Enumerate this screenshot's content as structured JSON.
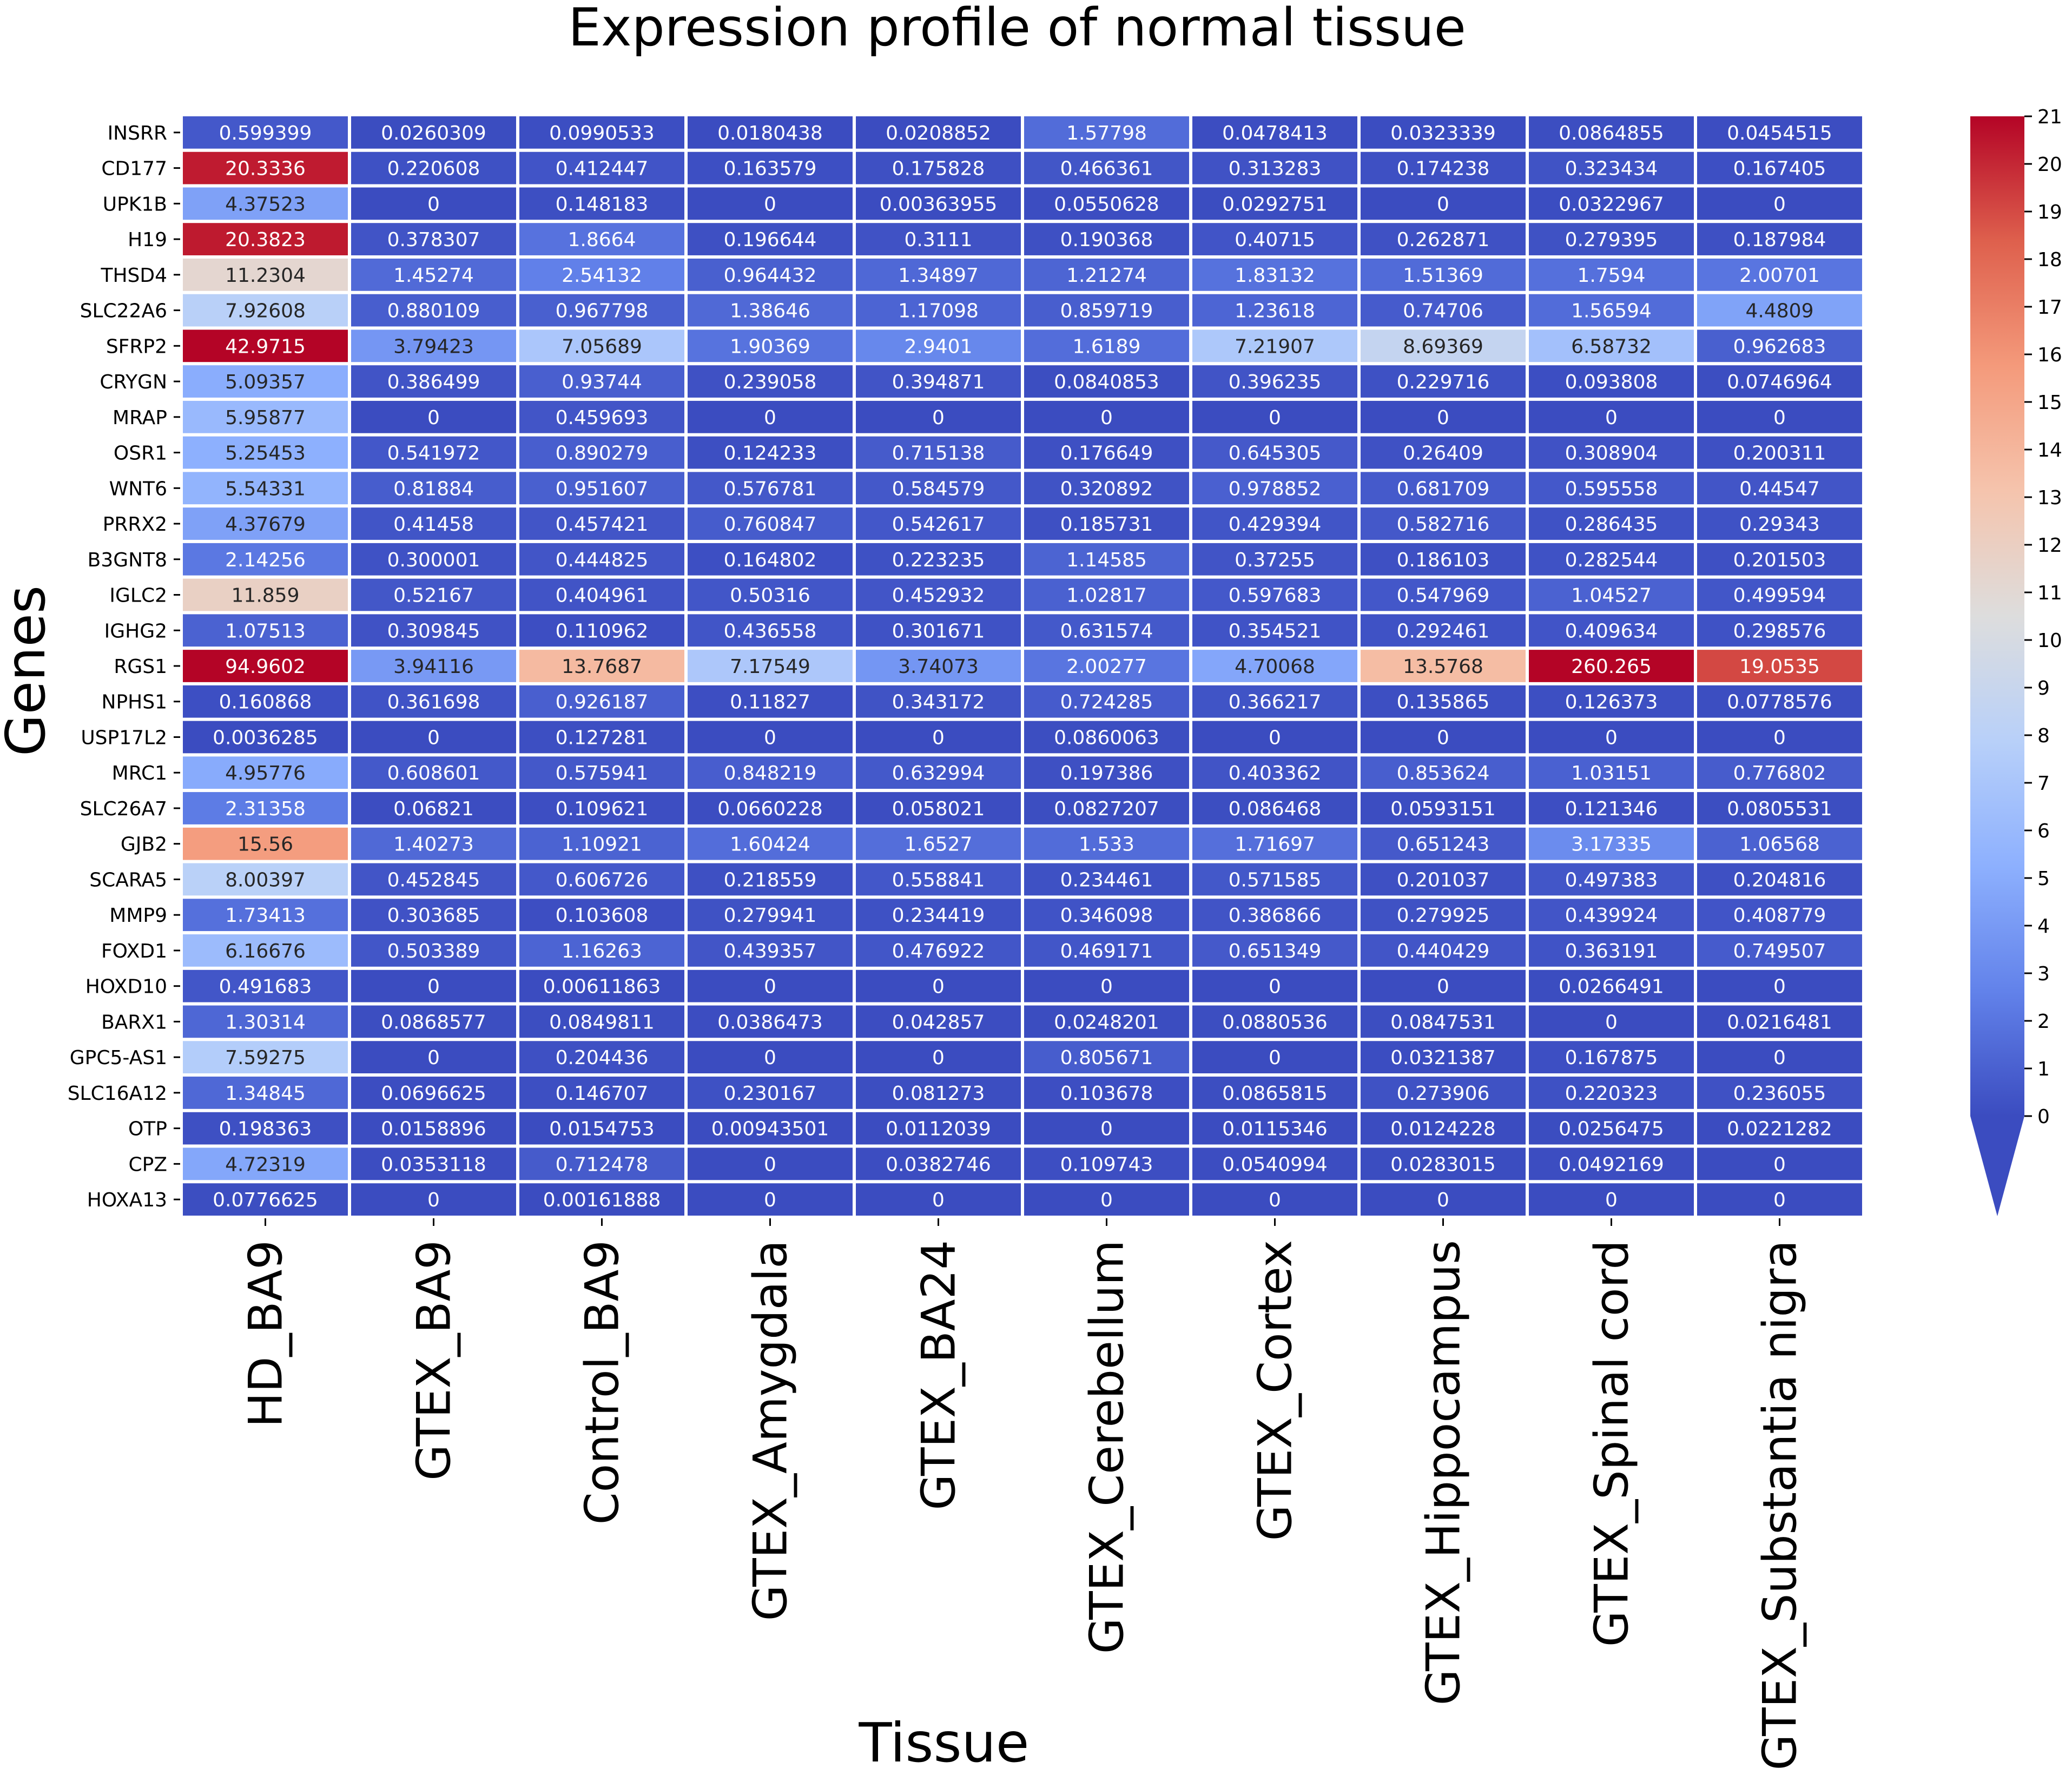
{
  "chart_data": {
    "type": "heatmap",
    "title": "Expression profile of normal tissue",
    "xlabel": "Tissue",
    "ylabel": "Genes",
    "colormap": "coolwarm",
    "vmin": 0,
    "vmax": 21,
    "colorbar_ticks": [
      "0",
      "1",
      "2",
      "3",
      "4",
      "5",
      "6",
      "7",
      "8",
      "9",
      "10",
      "11",
      "12",
      "13",
      "14",
      "15",
      "16",
      "17",
      "18",
      "19",
      "20",
      "21"
    ],
    "colorbar_extend": "min",
    "columns": [
      "HD_BA9",
      "GTEX_BA9",
      "Control_BA9",
      "GTEX_Amygdala",
      "GTEX_BA24",
      "GTEX_Cerebellum",
      "GTEX_Cortex",
      "GTEX_Hippocampus",
      "GTEX_Spinal cord",
      "GTEX_Substantia nigra"
    ],
    "rows": [
      "INSRR",
      "CD177",
      "UPK1B",
      "H19",
      "THSD4",
      "SLC22A6",
      "SFRP2",
      "CRYGN",
      "MRAP",
      "OSR1",
      "WNT6",
      "PRRX2",
      "B3GNT8",
      "IGLC2",
      "IGHG2",
      "RGS1",
      "NPHS1",
      "USP17L2",
      "MRC1",
      "SLC26A7",
      "GJB2",
      "SCARA5",
      "MMP9",
      "FOXD1",
      "HOXD10",
      "BARX1",
      "GPC5-AS1",
      "SLC16A12",
      "OTP",
      "CPZ",
      "HOXA13"
    ],
    "values": [
      [
        "0.599399",
        "0.0260309",
        "0.0990533",
        "0.0180438",
        "0.0208852",
        "1.57798",
        "0.0478413",
        "0.0323339",
        "0.0864855",
        "0.0454515"
      ],
      [
        "20.3336",
        "0.220608",
        "0.412447",
        "0.163579",
        "0.175828",
        "0.466361",
        "0.313283",
        "0.174238",
        "0.323434",
        "0.167405"
      ],
      [
        "4.37523",
        "0",
        "0.148183",
        "0",
        "0.00363955",
        "0.0550628",
        "0.0292751",
        "0",
        "0.0322967",
        "0"
      ],
      [
        "20.3823",
        "0.378307",
        "1.8664",
        "0.196644",
        "0.3111",
        "0.190368",
        "0.40715",
        "0.262871",
        "0.279395",
        "0.187984"
      ],
      [
        "11.2304",
        "1.45274",
        "2.54132",
        "0.964432",
        "1.34897",
        "1.21274",
        "1.83132",
        "1.51369",
        "1.7594",
        "2.00701"
      ],
      [
        "7.92608",
        "0.880109",
        "0.967798",
        "1.38646",
        "1.17098",
        "0.859719",
        "1.23618",
        "0.74706",
        "1.56594",
        "4.4809"
      ],
      [
        "42.9715",
        "3.79423",
        "7.05689",
        "1.90369",
        "2.9401",
        "1.6189",
        "7.21907",
        "8.69369",
        "6.58732",
        "0.962683"
      ],
      [
        "5.09357",
        "0.386499",
        "0.93744",
        "0.239058",
        "0.394871",
        "0.0840853",
        "0.396235",
        "0.229716",
        "0.093808",
        "0.0746964"
      ],
      [
        "5.95877",
        "0",
        "0.459693",
        "0",
        "0",
        "0",
        "0",
        "0",
        "0",
        "0"
      ],
      [
        "5.25453",
        "0.541972",
        "0.890279",
        "0.124233",
        "0.715138",
        "0.176649",
        "0.645305",
        "0.26409",
        "0.308904",
        "0.200311"
      ],
      [
        "5.54331",
        "0.81884",
        "0.951607",
        "0.576781",
        "0.584579",
        "0.320892",
        "0.978852",
        "0.681709",
        "0.595558",
        "0.44547"
      ],
      [
        "4.37679",
        "0.41458",
        "0.457421",
        "0.760847",
        "0.542617",
        "0.185731",
        "0.429394",
        "0.582716",
        "0.286435",
        "0.29343"
      ],
      [
        "2.14256",
        "0.300001",
        "0.444825",
        "0.164802",
        "0.223235",
        "1.14585",
        "0.37255",
        "0.186103",
        "0.282544",
        "0.201503"
      ],
      [
        "11.859",
        "0.52167",
        "0.404961",
        "0.50316",
        "0.452932",
        "1.02817",
        "0.597683",
        "0.547969",
        "1.04527",
        "0.499594"
      ],
      [
        "1.07513",
        "0.309845",
        "0.110962",
        "0.436558",
        "0.301671",
        "0.631574",
        "0.354521",
        "0.292461",
        "0.409634",
        "0.298576"
      ],
      [
        "94.9602",
        "3.94116",
        "13.7687",
        "7.17549",
        "3.74073",
        "2.00277",
        "4.70068",
        "13.5768",
        "260.265",
        "19.0535"
      ],
      [
        "0.160868",
        "0.361698",
        "0.926187",
        "0.11827",
        "0.343172",
        "0.724285",
        "0.366217",
        "0.135865",
        "0.126373",
        "0.0778576"
      ],
      [
        "0.0036285",
        "0",
        "0.127281",
        "0",
        "0",
        "0.0860063",
        "0",
        "0",
        "0",
        "0"
      ],
      [
        "4.95776",
        "0.608601",
        "0.575941",
        "0.848219",
        "0.632994",
        "0.197386",
        "0.403362",
        "0.853624",
        "1.03151",
        "0.776802"
      ],
      [
        "2.31358",
        "0.06821",
        "0.109621",
        "0.0660228",
        "0.058021",
        "0.0827207",
        "0.086468",
        "0.0593151",
        "0.121346",
        "0.0805531"
      ],
      [
        "15.56",
        "1.40273",
        "1.10921",
        "1.60424",
        "1.6527",
        "1.533",
        "1.71697",
        "0.651243",
        "3.17335",
        "1.06568"
      ],
      [
        "8.00397",
        "0.452845",
        "0.606726",
        "0.218559",
        "0.558841",
        "0.234461",
        "0.571585",
        "0.201037",
        "0.497383",
        "0.204816"
      ],
      [
        "1.73413",
        "0.303685",
        "0.103608",
        "0.279941",
        "0.234419",
        "0.346098",
        "0.386866",
        "0.279925",
        "0.439924",
        "0.408779"
      ],
      [
        "6.16676",
        "0.503389",
        "1.16263",
        "0.439357",
        "0.476922",
        "0.469171",
        "0.651349",
        "0.440429",
        "0.363191",
        "0.749507"
      ],
      [
        "0.491683",
        "0",
        "0.00611863",
        "0",
        "0",
        "0",
        "0",
        "0",
        "0.0266491",
        "0"
      ],
      [
        "1.30314",
        "0.0868577",
        "0.0849811",
        "0.0386473",
        "0.042857",
        "0.0248201",
        "0.0880536",
        "0.0847531",
        "0",
        "0.0216481"
      ],
      [
        "7.59275",
        "0",
        "0.204436",
        "0",
        "0",
        "0.805671",
        "0",
        "0.0321387",
        "0.167875",
        "0"
      ],
      [
        "1.34845",
        "0.0696625",
        "0.146707",
        "0.230167",
        "0.081273",
        "0.103678",
        "0.0865815",
        "0.273906",
        "0.220323",
        "0.236055"
      ],
      [
        "0.198363",
        "0.0158896",
        "0.0154753",
        "0.00943501",
        "0.0112039",
        "0",
        "0.0115346",
        "0.0124228",
        "0.0256475",
        "0.0221282"
      ],
      [
        "4.72319",
        "0.0353118",
        "0.712478",
        "0",
        "0.0382746",
        "0.109743",
        "0.0540994",
        "0.0283015",
        "0.0492169",
        "0"
      ],
      [
        "0.0776625",
        "0",
        "0.00161888",
        "0",
        "0",
        "0",
        "0",
        "0",
        "0",
        "0"
      ]
    ]
  }
}
